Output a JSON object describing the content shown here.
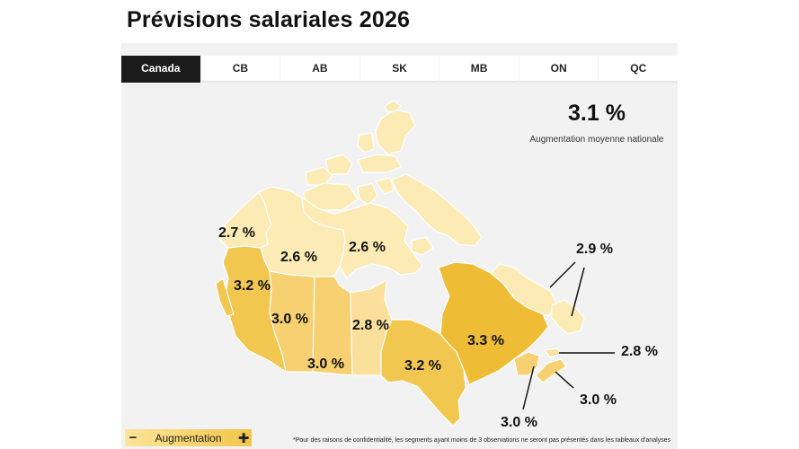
{
  "header": {
    "title": "Prévisions salariales 2026"
  },
  "tabs": [
    {
      "label": "Canada",
      "active": true
    },
    {
      "label": "CB",
      "active": false
    },
    {
      "label": "AB",
      "active": false
    },
    {
      "label": "SK",
      "active": false
    },
    {
      "label": "MB",
      "active": false
    },
    {
      "label": "ON",
      "active": false
    },
    {
      "label": "QC",
      "active": false
    }
  ],
  "national": {
    "value": "3.1 %",
    "label": "Augmentation moyenne nationale"
  },
  "regions": {
    "yukon": "2.7 %",
    "northwest_territories": "2.6 %",
    "nunavut": "2.6 %",
    "british_columbia": "3.2 %",
    "alberta": "3.0 %",
    "saskatchewan": "3.0 %",
    "manitoba": "2.8 %",
    "ontario": "3.2 %",
    "quebec": "3.3 %",
    "newfoundland_labrador": "2.9 %",
    "new_brunswick": "3.0 %",
    "prince_edward_island": "2.8 %",
    "nova_scotia": "3.0 %"
  },
  "colors": {
    "very_light": "#fdebb6",
    "light": "#fae09a",
    "medium": "#f6d071",
    "medium_dark": "#f2c74f",
    "dark": "#efbd35",
    "darkest": "#e9b320",
    "tab_active": "#1b1b1b"
  },
  "legend": {
    "minus": "−",
    "label": "Augmentation",
    "plus": "✚"
  },
  "footnote": "*Pour des raisons de confidentialité, les segments ayant moins de 3 observations ne seront pas présentés dans les tableaux d'analyses"
}
